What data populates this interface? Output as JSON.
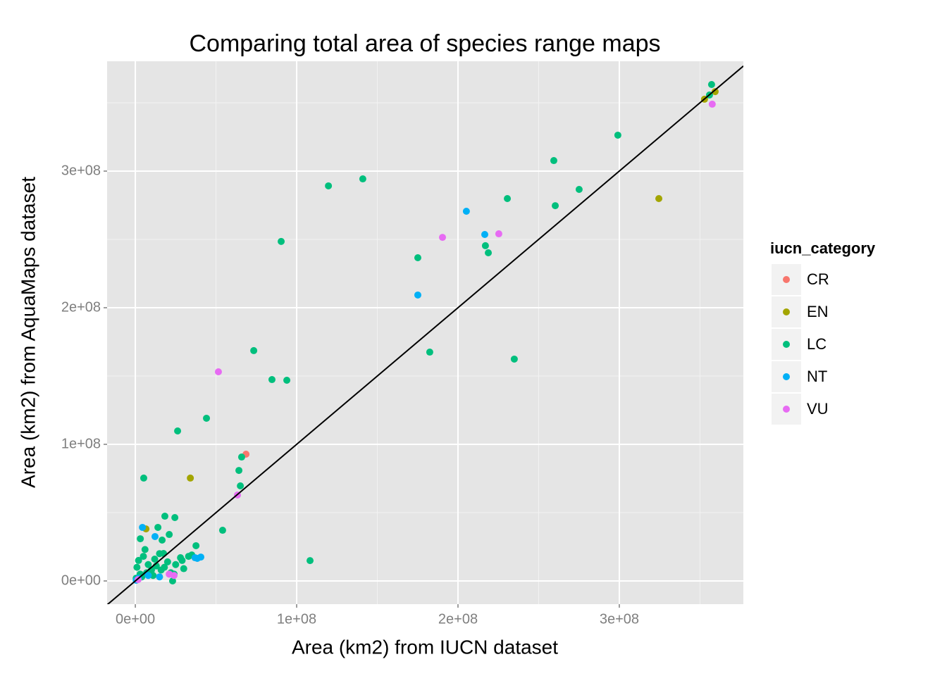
{
  "chart_data": {
    "type": "scatter",
    "title": "Comparing total area of species range maps",
    "x_label": "Area (km2) from IUCN dataset",
    "y_label": "Area (km2) from AquaMaps dataset",
    "legend_title": "iucn_category",
    "xlim": [
      -17500000,
      376900000
    ],
    "ylim": [
      -17000000,
      380400000
    ],
    "xticks": [
      {
        "value": 0,
        "label": "0e+00"
      },
      {
        "value": 100000000,
        "label": "1e+08"
      },
      {
        "value": 200000000,
        "label": "2e+08"
      },
      {
        "value": 300000000,
        "label": "3e+08"
      }
    ],
    "yticks": [
      {
        "value": 0,
        "label": "0e+00"
      },
      {
        "value": 100000000,
        "label": "1e+08"
      },
      {
        "value": 200000000,
        "label": "2e+08"
      },
      {
        "value": 300000000,
        "label": "3e+08"
      }
    ],
    "x_minor_grid": [
      50000000,
      150000000,
      250000000,
      350000000
    ],
    "y_minor_grid": [
      50000000,
      150000000,
      250000000,
      350000000
    ],
    "grid": true,
    "reference_line": {
      "slope": 1,
      "intercept": 0
    },
    "series": [
      {
        "name": "CR",
        "color": "#F8766D",
        "x": [
          68600000
        ],
        "values": [
          92800000
        ]
      },
      {
        "name": "EN",
        "color": "#A3A500",
        "x": [
          6600000,
          34100000,
          324500000,
          352800000,
          359400000
        ],
        "values": [
          38100000,
          75300000,
          279900000,
          352600000,
          358200000
        ]
      },
      {
        "name": "LC",
        "color": "#00BF7D",
        "x": [
          357200000,
          355900000,
          299100000,
          259400000,
          275100000,
          260300000,
          230600000,
          141000000,
          119700000,
          90400000,
          175100000,
          217000000,
          218800000,
          182500000,
          234900000,
          73400000,
          84700000,
          93900000,
          44100000,
          26200000,
          5200000,
          65900000,
          64200000,
          65100000,
          54100000,
          108300000,
          18300000,
          24500000,
          14000000,
          21000000,
          3100000,
          16600000,
          37600000,
          17500000,
          23100000,
          1000000,
          2000000,
          3000000,
          5000000,
          8000000,
          10000000,
          12000000,
          15000000,
          18000000,
          20000000,
          22000000,
          25000000,
          28000000,
          30000000,
          33000000,
          500000,
          4000000,
          7000000,
          11000000,
          16000000,
          24000000,
          29000000,
          35000000,
          6000000,
          13000000
        ],
        "values": [
          363400000,
          355700000,
          326300000,
          307700000,
          286600000,
          274700000,
          279900000,
          294300000,
          289200000,
          248500000,
          236600000,
          245400000,
          240200000,
          167500000,
          162400000,
          168600000,
          147400000,
          146900000,
          119100000,
          109800000,
          75300000,
          90700000,
          80900000,
          69600000,
          37100000,
          14900000,
          47400000,
          46400000,
          39200000,
          34000000,
          30900000,
          29900000,
          25800000,
          20100000,
          0,
          10000000,
          15000000,
          5000000,
          18000000,
          12000000,
          8000000,
          16000000,
          20000000,
          10000000,
          14000000,
          6000000,
          12000000,
          17000000,
          9000000,
          18000000,
          2000000,
          3000000,
          6000000,
          4000000,
          8000000,
          5000000,
          15000000,
          19000000,
          23000000,
          11000000
        ]
      },
      {
        "name": "NT",
        "color": "#00B0F6",
        "x": [
          205200000,
          216600000,
          175100000,
          4400000,
          12200000,
          38400000,
          40600000,
          2000000,
          8000000,
          15000000,
          37000000,
          500000
        ],
        "values": [
          270600000,
          253600000,
          209300000,
          39200000,
          32500000,
          16500000,
          17500000,
          2000000,
          4000000,
          3000000,
          17000000,
          500000
        ]
      },
      {
        "name": "VU",
        "color": "#E76BF3",
        "x": [
          51500000,
          190400000,
          225300000,
          357600000,
          63300000,
          21000000,
          1700000,
          24000000
        ],
        "values": [
          153100000,
          251500000,
          254100000,
          349000000,
          62900000,
          5000000,
          1000000,
          4000000
        ]
      }
    ]
  }
}
